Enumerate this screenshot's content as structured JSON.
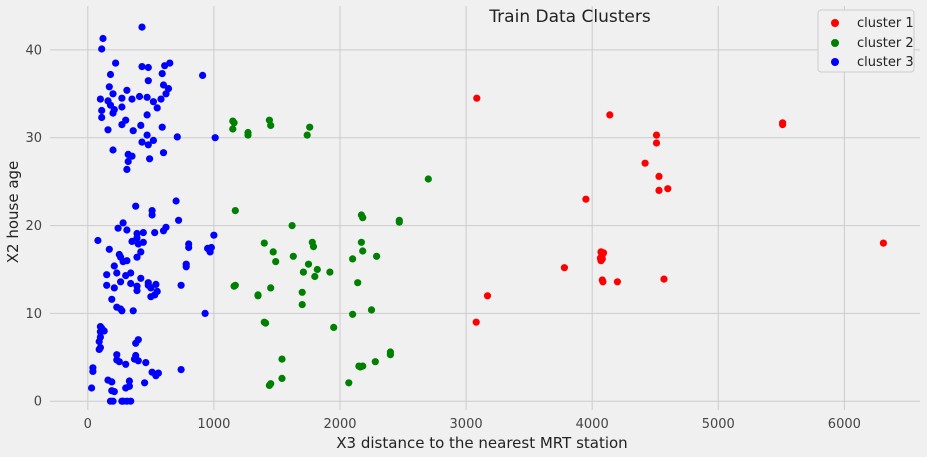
{
  "chart_data": {
    "type": "scatter",
    "title": "Train Data Clusters",
    "xlabel": "X3 distance to the nearest MRT station",
    "ylabel": "X2 house age",
    "xlim": [
      -300,
      6600
    ],
    "ylim": [
      -1,
      45
    ],
    "xticks": [
      0,
      1000,
      2000,
      3000,
      4000,
      5000,
      6000
    ],
    "yticks": [
      0,
      10,
      20,
      30,
      40
    ],
    "grid": true,
    "legend": "top-right",
    "series": [
      {
        "name": "cluster 1",
        "color": "#ff0000",
        "points": [
          [
            3085,
            34.5
          ],
          [
            3080,
            9.0
          ],
          [
            3170,
            12.0
          ],
          [
            3780,
            15.2
          ],
          [
            3950,
            23.0
          ],
          [
            4070,
            16.0
          ],
          [
            4075,
            16.5
          ],
          [
            4080,
            16.2
          ],
          [
            4085,
            16.8
          ],
          [
            4070,
            17.0
          ],
          [
            4090,
            16.9
          ],
          [
            4065,
            16.3
          ],
          [
            4080,
            13.8
          ],
          [
            4085,
            13.6
          ],
          [
            4200,
            13.6
          ],
          [
            4140,
            32.6
          ],
          [
            4420,
            27.1
          ],
          [
            4510,
            30.3
          ],
          [
            4510,
            29.4
          ],
          [
            4530,
            25.6
          ],
          [
            4530,
            24.0
          ],
          [
            4600,
            24.2
          ],
          [
            4570,
            13.9
          ],
          [
            5510,
            31.7
          ],
          [
            5510,
            31.5
          ],
          [
            6310,
            18.0
          ]
        ]
      },
      {
        "name": "cluster 2",
        "color": "#008000",
        "points": [
          [
            1150,
            31.9
          ],
          [
            1160,
            31.7
          ],
          [
            1150,
            31.0
          ],
          [
            1270,
            30.6
          ],
          [
            1270,
            30.3
          ],
          [
            1440,
            32.0
          ],
          [
            1450,
            31.4
          ],
          [
            1740,
            30.3
          ],
          [
            1760,
            31.2
          ],
          [
            1170,
            21.7
          ],
          [
            1160,
            13.1
          ],
          [
            1170,
            13.2
          ],
          [
            1350,
            12.1
          ],
          [
            1350,
            12.0
          ],
          [
            1400,
            9.0
          ],
          [
            1410,
            8.9
          ],
          [
            1400,
            18.0
          ],
          [
            1470,
            17.0
          ],
          [
            1490,
            15.9
          ],
          [
            1450,
            12.9
          ],
          [
            1450,
            2.0
          ],
          [
            1440,
            1.8
          ],
          [
            1540,
            4.8
          ],
          [
            1540,
            2.6
          ],
          [
            1620,
            20.0
          ],
          [
            1630,
            16.5
          ],
          [
            1710,
            14.7
          ],
          [
            1700,
            12.4
          ],
          [
            1700,
            11.0
          ],
          [
            1750,
            15.6
          ],
          [
            1780,
            18.1
          ],
          [
            1790,
            17.6
          ],
          [
            1820,
            15.0
          ],
          [
            1800,
            14.2
          ],
          [
            1920,
            14.7
          ],
          [
            1950,
            8.4
          ],
          [
            2070,
            2.1
          ],
          [
            2100,
            16.2
          ],
          [
            2100,
            9.9
          ],
          [
            2140,
            13.5
          ],
          [
            2150,
            4.0
          ],
          [
            2160,
            3.9
          ],
          [
            2180,
            4.0
          ],
          [
            2170,
            21.2
          ],
          [
            2180,
            20.9
          ],
          [
            2170,
            18.1
          ],
          [
            2180,
            17.1
          ],
          [
            2250,
            10.4
          ],
          [
            2290,
            16.5
          ],
          [
            2280,
            4.5
          ],
          [
            2400,
            5.6
          ],
          [
            2400,
            5.3
          ],
          [
            2470,
            20.6
          ],
          [
            2470,
            20.4
          ],
          [
            2700,
            25.3
          ]
        ]
      },
      {
        "name": "cluster 3",
        "color": "#0000ff",
        "points": [
          [
            120,
            41.3
          ],
          [
            110,
            40.1
          ],
          [
            430,
            42.6
          ],
          [
            220,
            38.5
          ],
          [
            430,
            38.1
          ],
          [
            480,
            38.0
          ],
          [
            610,
            38.2
          ],
          [
            650,
            38.5
          ],
          [
            180,
            37.2
          ],
          [
            590,
            37.3
          ],
          [
            480,
            36.5
          ],
          [
            600,
            36.0
          ],
          [
            170,
            35.8
          ],
          [
            200,
            35.0
          ],
          [
            310,
            35.4
          ],
          [
            640,
            35.6
          ],
          [
            620,
            35.0
          ],
          [
            100,
            34.4
          ],
          [
            160,
            34.2
          ],
          [
            350,
            34.4
          ],
          [
            410,
            34.7
          ],
          [
            470,
            34.6
          ],
          [
            520,
            34.1
          ],
          [
            270,
            34.5
          ],
          [
            580,
            34.4
          ],
          [
            180,
            33.7
          ],
          [
            210,
            33.2
          ],
          [
            270,
            33.5
          ],
          [
            550,
            33.4
          ],
          [
            110,
            33.1
          ],
          [
            200,
            32.8
          ],
          [
            110,
            32.3
          ],
          [
            300,
            32.0
          ],
          [
            470,
            32.6
          ],
          [
            420,
            31.4
          ],
          [
            270,
            31.5
          ],
          [
            360,
            30.8
          ],
          [
            160,
            30.9
          ],
          [
            470,
            30.3
          ],
          [
            590,
            31.2
          ],
          [
            710,
            30.1
          ],
          [
            1010,
            30.0
          ],
          [
            520,
            29.7
          ],
          [
            480,
            29.2
          ],
          [
            430,
            29.5
          ],
          [
            200,
            28.6
          ],
          [
            320,
            28.1
          ],
          [
            350,
            27.9
          ],
          [
            320,
            27.3
          ],
          [
            490,
            27.6
          ],
          [
            600,
            28.3
          ],
          [
            310,
            26.4
          ],
          [
            910,
            37.1
          ],
          [
            380,
            22.2
          ],
          [
            700,
            22.8
          ],
          [
            510,
            21.7
          ],
          [
            510,
            21.2
          ],
          [
            720,
            20.6
          ],
          [
            280,
            20.3
          ],
          [
            600,
            19.4
          ],
          [
            620,
            19.8
          ],
          [
            240,
            19.7
          ],
          [
            310,
            19.5
          ],
          [
            390,
            19.1
          ],
          [
            440,
            19.2
          ],
          [
            390,
            18.6
          ],
          [
            530,
            19.2
          ],
          [
            350,
            18.2
          ],
          [
            80,
            18.3
          ],
          [
            170,
            17.3
          ],
          [
            400,
            17.9
          ],
          [
            440,
            18.1
          ],
          [
            800,
            17.9
          ],
          [
            800,
            17.5
          ],
          [
            950,
            17.4
          ],
          [
            980,
            17.5
          ],
          [
            970,
            17.0
          ],
          [
            1000,
            18.9
          ],
          [
            420,
            17.0
          ],
          [
            260,
            16.4
          ],
          [
            390,
            16.4
          ],
          [
            310,
            16.0
          ],
          [
            280,
            15.9
          ],
          [
            250,
            16.7
          ],
          [
            210,
            15.4
          ],
          [
            780,
            15.6
          ],
          [
            780,
            15.3
          ],
          [
            150,
            14.4
          ],
          [
            230,
            14.6
          ],
          [
            300,
            14.3
          ],
          [
            340,
            14.6
          ],
          [
            420,
            14.0
          ],
          [
            480,
            13.5
          ],
          [
            480,
            13.2
          ],
          [
            500,
            12.9
          ],
          [
            540,
            13.3
          ],
          [
            550,
            12.5
          ],
          [
            260,
            13.6
          ],
          [
            340,
            13.4
          ],
          [
            150,
            13.2
          ],
          [
            210,
            12.9
          ],
          [
            390,
            13.1
          ],
          [
            530,
            12.1
          ],
          [
            500,
            11.9
          ],
          [
            190,
            11.6
          ],
          [
            390,
            12.6
          ],
          [
            740,
            13.2
          ],
          [
            230,
            10.7
          ],
          [
            260,
            10.5
          ],
          [
            270,
            10.3
          ],
          [
            360,
            10.3
          ],
          [
            930,
            10.0
          ],
          [
            100,
            8.5
          ],
          [
            110,
            8.3
          ],
          [
            130,
            8.0
          ],
          [
            100,
            7.9
          ],
          [
            100,
            7.3
          ],
          [
            90,
            6.8
          ],
          [
            100,
            6.1
          ],
          [
            90,
            5.9
          ],
          [
            400,
            7.0
          ],
          [
            380,
            6.6
          ],
          [
            380,
            5.2
          ],
          [
            370,
            4.8
          ],
          [
            400,
            4.6
          ],
          [
            230,
            5.3
          ],
          [
            230,
            4.7
          ],
          [
            300,
            4.2
          ],
          [
            460,
            4.4
          ],
          [
            250,
            4.5
          ],
          [
            40,
            3.8
          ],
          [
            40,
            3.4
          ],
          [
            510,
            3.3
          ],
          [
            560,
            3.2
          ],
          [
            540,
            2.9
          ],
          [
            740,
            3.6
          ],
          [
            160,
            2.4
          ],
          [
            190,
            2.2
          ],
          [
            330,
            2.3
          ],
          [
            450,
            2.1
          ],
          [
            300,
            1.5
          ],
          [
            330,
            1.7
          ],
          [
            30,
            1.5
          ],
          [
            190,
            1.2
          ],
          [
            210,
            1.1
          ],
          [
            180,
            0.0
          ],
          [
            200,
            0.0
          ],
          [
            270,
            0.0
          ],
          [
            280,
            0.0
          ],
          [
            310,
            0.0
          ],
          [
            340,
            0.0
          ]
        ]
      }
    ]
  }
}
